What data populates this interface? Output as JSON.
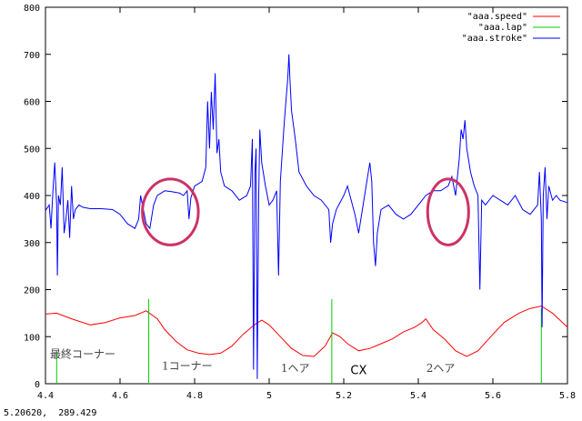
{
  "chart_data": {
    "type": "line",
    "title": "",
    "xlabel": "",
    "ylabel": "",
    "xlim": [
      4.4,
      5.8
    ],
    "ylim": [
      0,
      800
    ],
    "x_ticks": [
      4.4,
      4.6,
      4.8,
      5.0,
      5.2,
      5.4,
      5.6,
      5.8
    ],
    "x_tick_labels": [
      "4.4",
      "4.6",
      "4.8",
      "5",
      "5.2",
      "5.4",
      "5.6",
      "5.8"
    ],
    "y_ticks": [
      0,
      100,
      200,
      300,
      400,
      500,
      600,
      700,
      800
    ],
    "y_tick_labels": [
      "0",
      "100",
      "200",
      "300",
      "400",
      "500",
      "600",
      "700",
      "800"
    ],
    "grid": false,
    "legend_position": "top-right",
    "series": [
      {
        "name": "\"aaa.speed\"",
        "color": "#ff0000",
        "points": [
          [
            4.4,
            148
          ],
          [
            4.43,
            150
          ],
          [
            4.47,
            138
          ],
          [
            4.52,
            125
          ],
          [
            4.56,
            130
          ],
          [
            4.6,
            140
          ],
          [
            4.64,
            145
          ],
          [
            4.67,
            155
          ],
          [
            4.7,
            138
          ],
          [
            4.72,
            115
          ],
          [
            4.75,
            90
          ],
          [
            4.78,
            72
          ],
          [
            4.81,
            65
          ],
          [
            4.84,
            62
          ],
          [
            4.87,
            65
          ],
          [
            4.9,
            80
          ],
          [
            4.93,
            105
          ],
          [
            4.96,
            125
          ],
          [
            4.98,
            135
          ],
          [
            5.0,
            125
          ],
          [
            5.03,
            100
          ],
          [
            5.06,
            75
          ],
          [
            5.09,
            60
          ],
          [
            5.12,
            58
          ],
          [
            5.15,
            80
          ],
          [
            5.17,
            108
          ],
          [
            5.19,
            100
          ],
          [
            5.21,
            85
          ],
          [
            5.24,
            70
          ],
          [
            5.27,
            75
          ],
          [
            5.3,
            85
          ],
          [
            5.33,
            95
          ],
          [
            5.36,
            110
          ],
          [
            5.39,
            120
          ],
          [
            5.41,
            130
          ],
          [
            5.42,
            138
          ],
          [
            5.44,
            115
          ],
          [
            5.47,
            95
          ],
          [
            5.5,
            70
          ],
          [
            5.53,
            58
          ],
          [
            5.56,
            70
          ],
          [
            5.6,
            105
          ],
          [
            5.63,
            130
          ],
          [
            5.67,
            150
          ],
          [
            5.7,
            160
          ],
          [
            5.73,
            165
          ],
          [
            5.76,
            150
          ],
          [
            5.8,
            120
          ]
        ]
      },
      {
        "name": "\"aaa.lap\"",
        "color": "#00cc00",
        "impulses": [
          [
            4.43,
            70
          ],
          [
            4.677,
            180
          ],
          [
            5.168,
            180
          ],
          [
            5.73,
            160
          ]
        ]
      },
      {
        "name": "\"aaa.stroke\"",
        "color": "#0000ff",
        "points": [
          [
            4.4,
            368
          ],
          [
            4.41,
            380
          ],
          [
            4.415,
            330
          ],
          [
            4.42,
            410
          ],
          [
            4.425,
            470
          ],
          [
            4.43,
            380
          ],
          [
            4.432,
            230
          ],
          [
            4.435,
            400
          ],
          [
            4.44,
            380
          ],
          [
            4.445,
            460
          ],
          [
            4.45,
            320
          ],
          [
            4.455,
            350
          ],
          [
            4.46,
            390
          ],
          [
            4.465,
            310
          ],
          [
            4.47,
            420
          ],
          [
            4.475,
            350
          ],
          [
            4.48,
            370
          ],
          [
            4.49,
            380
          ],
          [
            4.5,
            375
          ],
          [
            4.52,
            372
          ],
          [
            4.55,
            372
          ],
          [
            4.58,
            370
          ],
          [
            4.6,
            360
          ],
          [
            4.62,
            340
          ],
          [
            4.64,
            330
          ],
          [
            4.65,
            350
          ],
          [
            4.655,
            400
          ],
          [
            4.66,
            380
          ],
          [
            4.67,
            340
          ],
          [
            4.68,
            330
          ],
          [
            4.69,
            380
          ],
          [
            4.7,
            400
          ],
          [
            4.72,
            410
          ],
          [
            4.74,
            408
          ],
          [
            4.76,
            405
          ],
          [
            4.77,
            400
          ],
          [
            4.78,
            410
          ],
          [
            4.785,
            350
          ],
          [
            4.79,
            395
          ],
          [
            4.8,
            420
          ],
          [
            4.82,
            430
          ],
          [
            4.83,
            460
          ],
          [
            4.835,
            600
          ],
          [
            4.84,
            500
          ],
          [
            4.845,
            620
          ],
          [
            4.85,
            540
          ],
          [
            4.855,
            660
          ],
          [
            4.86,
            490
          ],
          [
            4.865,
            520
          ],
          [
            4.87,
            450
          ],
          [
            4.88,
            420
          ],
          [
            4.9,
            410
          ],
          [
            4.92,
            390
          ],
          [
            4.94,
            400
          ],
          [
            4.95,
            420
          ],
          [
            4.955,
            520
          ],
          [
            4.958,
            30
          ],
          [
            4.962,
            450
          ],
          [
            4.965,
            500
          ],
          [
            4.968,
            10
          ],
          [
            4.972,
            400
          ],
          [
            4.975,
            540
          ],
          [
            4.98,
            470
          ],
          [
            4.99,
            420
          ],
          [
            5.0,
            380
          ],
          [
            5.01,
            390
          ],
          [
            5.02,
            410
          ],
          [
            5.025,
            230
          ],
          [
            5.03,
            430
          ],
          [
            5.04,
            550
          ],
          [
            5.045,
            600
          ],
          [
            5.05,
            650
          ],
          [
            5.053,
            700
          ],
          [
            5.056,
            640
          ],
          [
            5.06,
            580
          ],
          [
            5.07,
            520
          ],
          [
            5.08,
            450
          ],
          [
            5.1,
            420
          ],
          [
            5.12,
            400
          ],
          [
            5.14,
            390
          ],
          [
            5.16,
            370
          ],
          [
            5.165,
            300
          ],
          [
            5.17,
            340
          ],
          [
            5.18,
            370
          ],
          [
            5.2,
            400
          ],
          [
            5.21,
            420
          ],
          [
            5.22,
            390
          ],
          [
            5.23,
            360
          ],
          [
            5.24,
            320
          ],
          [
            5.25,
            370
          ],
          [
            5.26,
            420
          ],
          [
            5.27,
            470
          ],
          [
            5.275,
            430
          ],
          [
            5.28,
            300
          ],
          [
            5.285,
            250
          ],
          [
            5.29,
            320
          ],
          [
            5.3,
            370
          ],
          [
            5.32,
            380
          ],
          [
            5.34,
            360
          ],
          [
            5.36,
            350
          ],
          [
            5.38,
            360
          ],
          [
            5.4,
            380
          ],
          [
            5.42,
            400
          ],
          [
            5.44,
            410
          ],
          [
            5.46,
            410
          ],
          [
            5.48,
            420
          ],
          [
            5.49,
            440
          ],
          [
            5.5,
            400
          ],
          [
            5.51,
            480
          ],
          [
            5.515,
            540
          ],
          [
            5.52,
            520
          ],
          [
            5.525,
            560
          ],
          [
            5.53,
            500
          ],
          [
            5.54,
            450
          ],
          [
            5.55,
            420
          ],
          [
            5.56,
            400
          ],
          [
            5.565,
            200
          ],
          [
            5.57,
            390
          ],
          [
            5.58,
            380
          ],
          [
            5.6,
            400
          ],
          [
            5.62,
            390
          ],
          [
            5.64,
            380
          ],
          [
            5.66,
            400
          ],
          [
            5.68,
            370
          ],
          [
            5.7,
            360
          ],
          [
            5.72,
            380
          ],
          [
            5.725,
            450
          ],
          [
            5.73,
            350
          ],
          [
            5.732,
            120
          ],
          [
            5.735,
            400
          ],
          [
            5.74,
            460
          ],
          [
            5.745,
            350
          ],
          [
            5.75,
            420
          ],
          [
            5.76,
            390
          ],
          [
            5.77,
            400
          ],
          [
            5.78,
            390
          ],
          [
            5.8,
            385
          ]
        ]
      }
    ],
    "annotations": {
      "text_labels": [
        {
          "text": "最終コーナー",
          "x": 4.5,
          "y": 55
        },
        {
          "text": "1コーナー",
          "x": 4.78,
          "y": 30
        },
        {
          "text": "1ヘア",
          "x": 5.07,
          "y": 25
        },
        {
          "text": "CX",
          "x": 5.24,
          "y": 20
        },
        {
          "text": "2ヘア",
          "x": 5.46,
          "y": 25
        }
      ],
      "circles": [
        {
          "cx": 4.735,
          "cy": 365,
          "rx": 0.075,
          "ry": 70,
          "color": "#cc3366"
        },
        {
          "cx": 5.48,
          "cy": 365,
          "rx": 0.055,
          "ry": 70,
          "color": "#cc3366"
        }
      ]
    },
    "coordinate_readout": "5.20620,  289.429"
  }
}
